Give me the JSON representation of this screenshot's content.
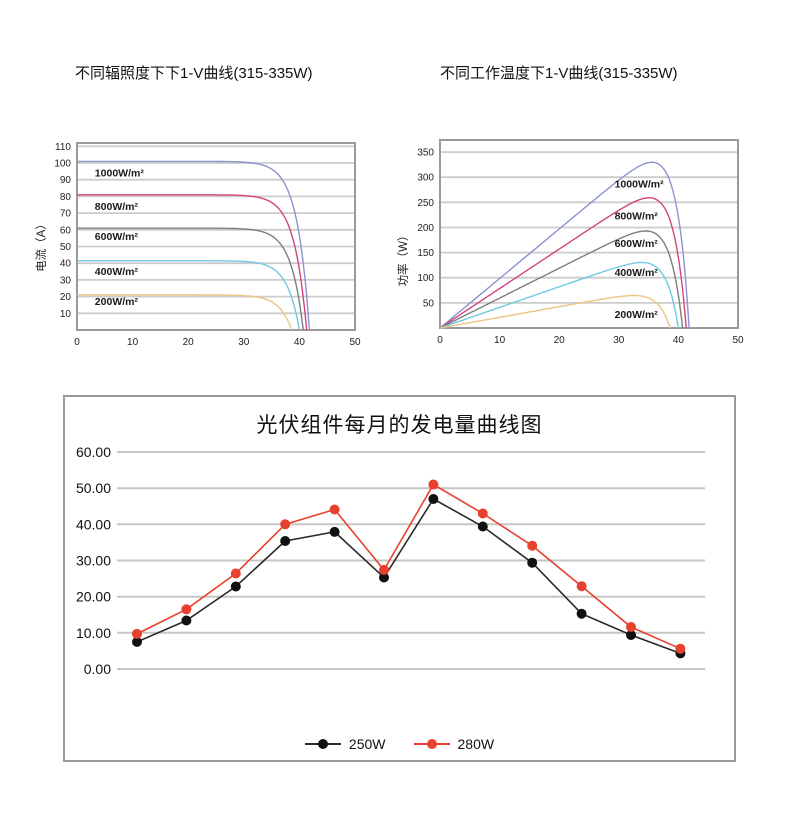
{
  "chart_data": [
    {
      "id": "iv-current",
      "type": "line",
      "title": "不同辐照度下下1-V曲线(315-335W)",
      "xlabel": "",
      "ylabel": "电流（A）",
      "xlim": [
        0,
        50
      ],
      "x_ticks": [
        0,
        10,
        20,
        30,
        40,
        50
      ],
      "y_ticks": [
        10,
        20,
        30,
        40,
        50,
        60,
        70,
        80,
        90,
        100,
        110
      ],
      "grid": "horizontal",
      "legend_position": "inline-labels",
      "curve_model": {
        "type": "solar_iv",
        "softness": 2.2
      },
      "series": [
        {
          "name": "1000W/m²",
          "isc": 101,
          "voc": 41.8,
          "color": "#8b93d1",
          "label_at": [
            3.2,
            92
          ]
        },
        {
          "name": "800W/m²",
          "isc": 81,
          "voc": 41.3,
          "color": "#d1447f",
          "label_at": [
            3.2,
            72
          ]
        },
        {
          "name": "600W/m²",
          "isc": 61,
          "voc": 40.7,
          "color": "#7d7d7d",
          "label_at": [
            3.2,
            54
          ]
        },
        {
          "name": "400W/m²",
          "isc": 41.5,
          "voc": 40.0,
          "color": "#70cbe2",
          "label_at": [
            3.2,
            33
          ]
        },
        {
          "name": "200W/m²",
          "isc": 21,
          "voc": 38.6,
          "color": "#e9c686",
          "label_at": [
            3.2,
            15
          ]
        }
      ]
    },
    {
      "id": "pv-power",
      "type": "line",
      "title": "不同工作温度下1-V曲线(315-335W)",
      "xlabel": "",
      "ylabel": "功率（W）",
      "xlim": [
        0,
        50
      ],
      "x_ticks": [
        0,
        10,
        20,
        30,
        40,
        50
      ],
      "y_ticks": [
        50,
        100,
        150,
        200,
        250,
        300,
        350
      ],
      "grid": "horizontal",
      "legend_position": "inline-labels",
      "curve_model": {
        "type": "solar_power",
        "softness": 2.2
      },
      "series": [
        {
          "name": "1000W/m²",
          "isc": 9.85,
          "voc": 41.8,
          "peak": 325,
          "color": "#8b93d1",
          "label_at": [
            29.3,
            280
          ]
        },
        {
          "name": "800W/m²",
          "isc": 7.85,
          "voc": 41.3,
          "peak": 258,
          "color": "#d1447f",
          "label_at": [
            29.3,
            216
          ]
        },
        {
          "name": "600W/m²",
          "isc": 5.95,
          "voc": 40.7,
          "peak": 195,
          "color": "#7d7d7d",
          "label_at": [
            29.3,
            161
          ]
        },
        {
          "name": "400W/m²",
          "isc": 4.1,
          "voc": 40.0,
          "peak": 131,
          "color": "#70cbe2",
          "label_at": [
            29.3,
            103
          ]
        },
        {
          "name": "200W/m²",
          "isc": 2.12,
          "voc": 38.6,
          "peak": 66,
          "color": "#e9c686",
          "label_at": [
            29.3,
            20
          ]
        }
      ]
    },
    {
      "id": "monthly-generation",
      "type": "line",
      "title": "光伏组件每月的发电量曲线图",
      "xlabel": "",
      "ylabel": "",
      "x": [
        1,
        2,
        3,
        4,
        5,
        6,
        7,
        8,
        9,
        10,
        11,
        12
      ],
      "ylim": [
        0,
        60
      ],
      "y_ticks": [
        0,
        10,
        20,
        30,
        40,
        50,
        60
      ],
      "y_tick_labels": [
        "0.00",
        "10.00",
        "20.00",
        "30.00",
        "40.00",
        "50.00",
        "60.00"
      ],
      "grid": "horizontal",
      "legend_position": "bottom-center",
      "series": [
        {
          "name": "250W",
          "color": "#111111",
          "line_color": "#2a2a2a",
          "values": [
            7.5,
            13.4,
            22.8,
            35.4,
            37.9,
            25.3,
            47.0,
            39.4,
            29.4,
            15.3,
            9.4,
            4.3
          ]
        },
        {
          "name": "280W",
          "color": "#e8402e",
          "line_color": "#e8402e",
          "values": [
            9.7,
            16.5,
            26.4,
            40.0,
            44.1,
            27.4,
            51.0,
            43.0,
            34.1,
            22.9,
            11.6,
            5.6
          ]
        }
      ]
    }
  ],
  "colors": {
    "grid_line": "#c6c6c6",
    "frame_border": "#9a9a9a",
    "series_250w": "#111111",
    "series_280w": "#e8402e"
  }
}
